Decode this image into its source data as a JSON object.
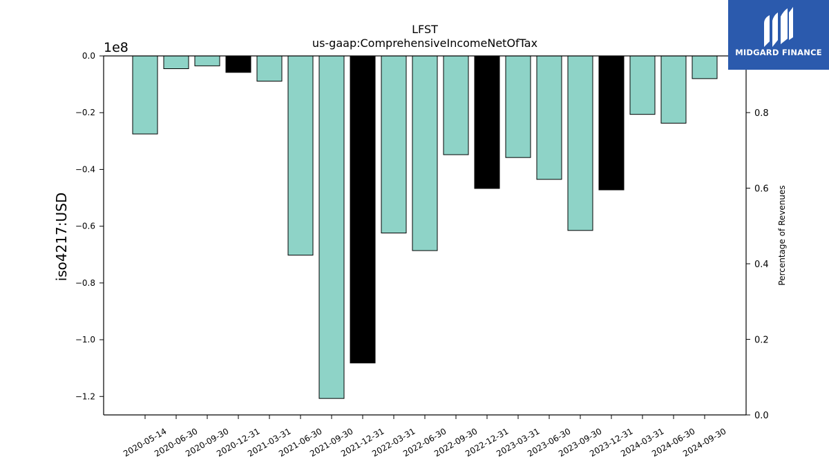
{
  "chart_data": {
    "type": "bar",
    "title": "LFST",
    "subtitle": "us-gaap:ComprehensiveIncomeNetOfTax",
    "ylabel": "iso4217:USD",
    "y_offset_label": "1e8",
    "y2label": "Percentage of Revenues",
    "ylim": [
      -1.265,
      0.0
    ],
    "y_ticks": [
      "0.0",
      "−0.2",
      "−0.4",
      "−0.6",
      "−0.8",
      "−1.0",
      "−1.2"
    ],
    "y_tick_values": [
      0.0,
      -0.2,
      -0.4,
      -0.6,
      -0.8,
      -1.0,
      -1.2
    ],
    "y2lim": [
      0.0,
      0.95
    ],
    "y2_ticks": [
      "0.0",
      "0.2",
      "0.4",
      "0.6",
      "0.8"
    ],
    "y2_tick_values": [
      0.0,
      0.2,
      0.4,
      0.6,
      0.8
    ],
    "categories": [
      "2020-05-14",
      "2020-06-30",
      "2020-09-30",
      "2020-12-31",
      "2021-03-31",
      "2021-06-30",
      "2021-09-30",
      "2021-12-31",
      "2022-03-31",
      "2022-06-30",
      "2022-09-30",
      "2022-12-31",
      "2023-03-31",
      "2023-06-30",
      "2023-09-30",
      "2023-12-31",
      "2024-03-31",
      "2024-06-30",
      "2024-09-30"
    ],
    "values": [
      -0.275,
      -0.045,
      -0.035,
      -0.058,
      -0.089,
      -0.702,
      -1.207,
      -1.082,
      -0.624,
      -0.686,
      -0.348,
      -0.467,
      -0.358,
      -0.435,
      -0.615,
      -0.472,
      -0.206,
      -0.237,
      -0.08
    ],
    "bar_colors": [
      "#8ed3c7",
      "#8ed3c7",
      "#8ed3c7",
      "#000000",
      "#8ed3c7",
      "#8ed3c7",
      "#8ed3c7",
      "#000000",
      "#8ed3c7",
      "#8ed3c7",
      "#8ed3c7",
      "#000000",
      "#8ed3c7",
      "#8ed3c7",
      "#8ed3c7",
      "#000000",
      "#8ed3c7",
      "#8ed3c7",
      "#8ed3c7"
    ],
    "grid": false,
    "legend": "none"
  },
  "logo": {
    "text": "MIDGARD FINANCE",
    "background": "#2b5aad",
    "icon": "midgard-m-logo"
  }
}
